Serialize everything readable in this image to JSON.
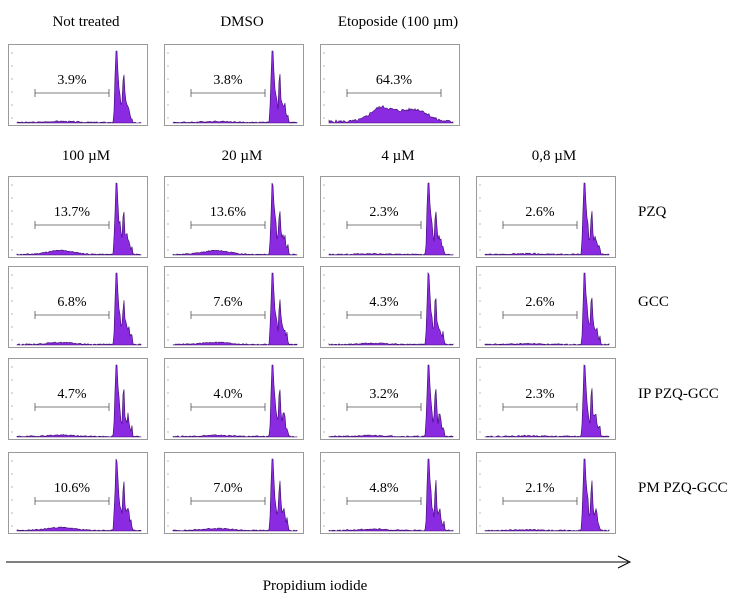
{
  "chart_data": {
    "type": "histogram-grid",
    "xlabel": "Propidium iodide",
    "column_headers_top": [
      "Not treated",
      "DMSO",
      "Etoposide (100 µm)"
    ],
    "column_headers": [
      "100  µM",
      "20  µM",
      "4  µM",
      "0,8  µM"
    ],
    "row_labels": [
      "PZQ",
      "GCC",
      "IP PZQ-GCC",
      "PM PZQ-GCC"
    ],
    "top_row": [
      {
        "label": "Not treated",
        "percent": "3.9%",
        "subg1": 3.9
      },
      {
        "label": "DMSO",
        "percent": "3.8%",
        "subg1": 3.8
      },
      {
        "label": "Etoposide (100 µm)",
        "percent": "64.3%",
        "subg1": 64.3
      }
    ],
    "grid": [
      {
        "row": "PZQ",
        "percent": [
          "13.7%",
          "13.6%",
          "2.3%",
          "2.6%"
        ],
        "subg1": [
          13.7,
          13.6,
          2.3,
          2.6
        ]
      },
      {
        "row": "GCC",
        "percent": [
          "6.8%",
          "7.6%",
          "4.3%",
          "2.6%"
        ],
        "subg1": [
          6.8,
          7.6,
          4.3,
          2.6
        ]
      },
      {
        "row": "IP PZQ-GCC",
        "percent": [
          "4.7%",
          "4.0%",
          "3.2%",
          "2.3%"
        ],
        "subg1": [
          4.7,
          4.0,
          3.2,
          2.3
        ]
      },
      {
        "row": "PM PZQ-GCC",
        "percent": [
          "10.6%",
          "7.0%",
          "4.8%",
          "2.1%"
        ],
        "subg1": [
          10.6,
          7.0,
          4.8,
          2.1
        ]
      }
    ],
    "fill_color": "#8a2be2",
    "edge_color": "#3b0a6b"
  }
}
